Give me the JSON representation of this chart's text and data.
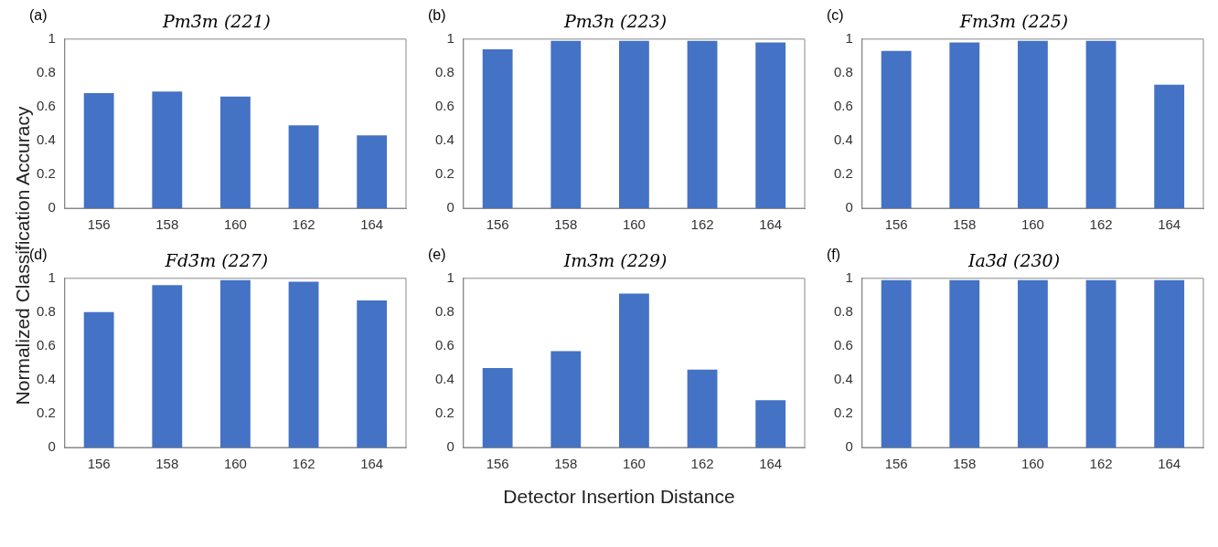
{
  "chart_data": [
    {
      "type": "bar",
      "title": "Pm3̄m (221)",
      "annotations": [
        "(a)"
      ],
      "ylabel": "Normalized Classification Accuracy",
      "categories": [
        "156",
        "158",
        "160",
        "162",
        "164"
      ],
      "values": [
        0.68,
        0.69,
        0.66,
        0.49,
        0.43
      ],
      "color": "#4472c4",
      "ylim": [
        0,
        1
      ],
      "yticks": [
        0,
        0.2,
        0.4,
        0.6,
        0.8,
        1
      ],
      "grid": false
    },
    {
      "type": "bar",
      "title": "Pm3̄n (223)",
      "annotations": [
        "(b)"
      ],
      "categories": [
        "156",
        "158",
        "160",
        "162",
        "164"
      ],
      "values": [
        0.94,
        0.99,
        0.99,
        0.99,
        0.98
      ],
      "color": "#4472c4",
      "ylim": [
        0,
        1
      ],
      "yticks": [
        0,
        0.2,
        0.4,
        0.6,
        0.8,
        1
      ],
      "grid": false
    },
    {
      "type": "bar",
      "title": "Fm3̄m (225)",
      "annotations": [
        "(c)"
      ],
      "categories": [
        "156",
        "158",
        "160",
        "162",
        "164"
      ],
      "values": [
        0.93,
        0.98,
        0.99,
        0.99,
        0.73
      ],
      "color": "#4472c4",
      "ylim": [
        0,
        1
      ],
      "yticks": [
        0,
        0.2,
        0.4,
        0.6,
        0.8,
        1
      ],
      "grid": false
    },
    {
      "type": "bar",
      "title": "Fd3̄m (227)",
      "annotations": [
        "(d)"
      ],
      "categories": [
        "156",
        "158",
        "160",
        "162",
        "164"
      ],
      "values": [
        0.8,
        0.96,
        0.99,
        0.98,
        0.87
      ],
      "color": "#4472c4",
      "ylim": [
        0,
        1
      ],
      "yticks": [
        0,
        0.2,
        0.4,
        0.6,
        0.8,
        1
      ],
      "grid": false
    },
    {
      "type": "bar",
      "title": "Im3̄m (229)",
      "annotations": [
        "(e)"
      ],
      "xlabel": "Detector Insertion Distance",
      "categories": [
        "156",
        "158",
        "160",
        "162",
        "164"
      ],
      "values": [
        0.47,
        0.57,
        0.91,
        0.46,
        0.28
      ],
      "color": "#4472c4",
      "ylim": [
        0,
        1
      ],
      "yticks": [
        0,
        0.2,
        0.4,
        0.6,
        0.8,
        1
      ],
      "grid": false
    },
    {
      "type": "bar",
      "title": "Ia3̄d (230)",
      "annotations": [
        "(f)"
      ],
      "categories": [
        "156",
        "158",
        "160",
        "162",
        "164"
      ],
      "values": [
        0.99,
        0.99,
        0.99,
        0.99,
        0.99
      ],
      "color": "#4472c4",
      "ylim": [
        0,
        1
      ],
      "yticks": [
        0,
        0.2,
        0.4,
        0.6,
        0.8,
        1
      ],
      "grid": false
    }
  ]
}
